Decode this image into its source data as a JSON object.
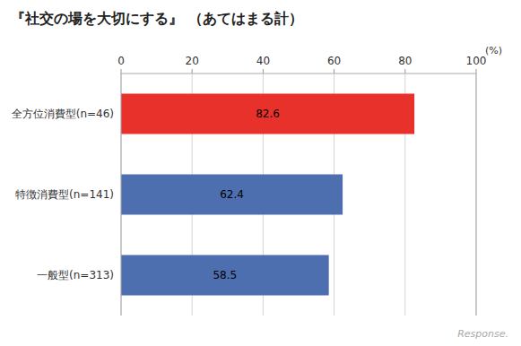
{
  "chart_data": {
    "type": "bar",
    "orientation": "horizontal",
    "title": "『社交の場を大切にする』  （あてはまる計）",
    "categories": [
      "全方位消費型(n=46)",
      "特徴消費型(n=141)",
      "一般型(n=313)"
    ],
    "values": [
      82.6,
      62.4,
      58.5
    ],
    "colors": [
      "#e8312a",
      "#4e6faf",
      "#4e6faf"
    ],
    "xlabel": "(%)",
    "xlim": [
      0,
      100
    ],
    "xticks": [
      0,
      20,
      40,
      60,
      80,
      100
    ],
    "grid": true,
    "data_labels": true,
    "annotations": [
      {
        "text": "Response."
      }
    ]
  }
}
